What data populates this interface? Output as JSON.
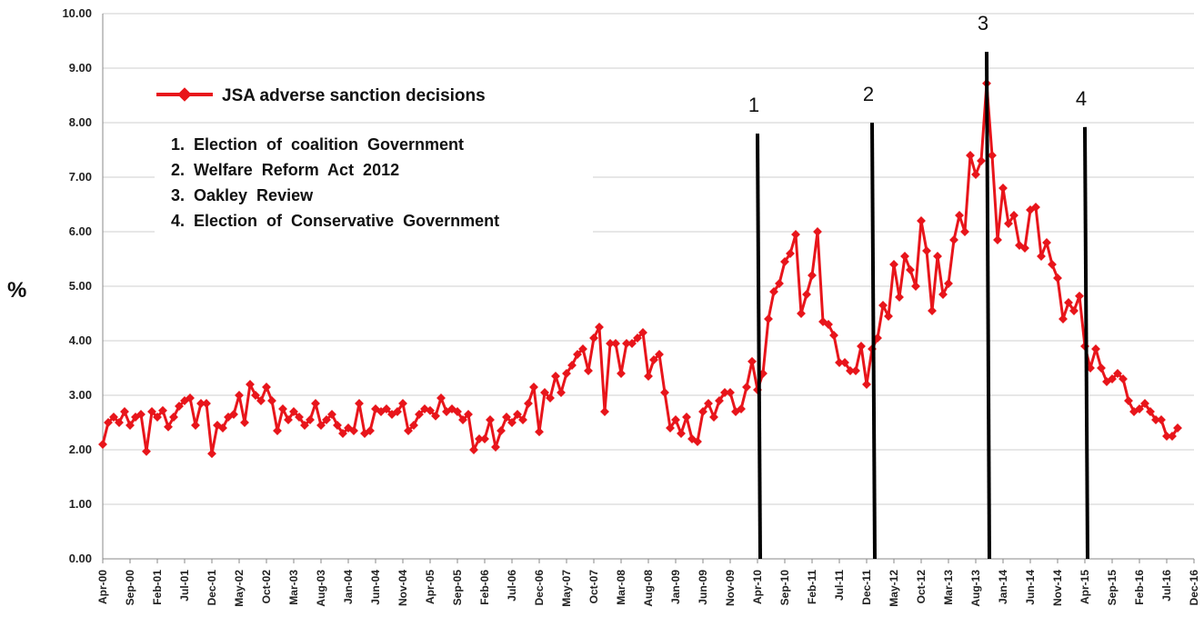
{
  "chart_data": {
    "type": "line",
    "title": "",
    "ylabel": "%",
    "xlabel": "",
    "ylim": [
      0,
      10
    ],
    "y_ticks": [
      "0.00",
      "1.00",
      "2.00",
      "3.00",
      "4.00",
      "5.00",
      "6.00",
      "7.00",
      "8.00",
      "9.00",
      "10.00"
    ],
    "x_ticks": [
      "Apr-00",
      "Sep-00",
      "Feb-01",
      "Jul-01",
      "Dec-01",
      "May-02",
      "Oct-02",
      "Mar-03",
      "Aug-03",
      "Jan-04",
      "Jun-04",
      "Nov-04",
      "Apr-05",
      "Sep-05",
      "Feb-06",
      "Jul-06",
      "Dec-06",
      "May-07",
      "Oct-07",
      "Mar-08",
      "Aug-08",
      "Jan-09",
      "Jun-09",
      "Nov-09",
      "Apr-10",
      "Sep-10",
      "Feb-11",
      "Jul-11",
      "Dec-11",
      "May-12",
      "Oct-12",
      "Mar-13",
      "Aug-13",
      "Jan-14",
      "Jun-14",
      "Nov-14",
      "Apr-15",
      "Sep-15",
      "Feb-16",
      "Jul-16",
      "Dec-16"
    ],
    "grid": "horizontal",
    "legend_position": "top-left",
    "series": [
      {
        "name": "JSA adverse sanction decisions",
        "color": "#e8151b",
        "start": "Apr-00",
        "frequency": "monthly",
        "values": [
          2.1,
          2.5,
          2.6,
          2.5,
          2.7,
          2.45,
          2.6,
          2.65,
          1.97,
          2.7,
          2.6,
          2.72,
          2.42,
          2.6,
          2.8,
          2.9,
          2.95,
          2.45,
          2.85,
          2.85,
          1.93,
          2.45,
          2.4,
          2.6,
          2.65,
          3.0,
          2.5,
          3.2,
          3.0,
          2.9,
          3.15,
          2.9,
          2.35,
          2.75,
          2.55,
          2.7,
          2.6,
          2.45,
          2.55,
          2.85,
          2.45,
          2.55,
          2.65,
          2.45,
          2.3,
          2.4,
          2.35,
          2.85,
          2.3,
          2.35,
          2.75,
          2.7,
          2.75,
          2.65,
          2.7,
          2.85,
          2.35,
          2.45,
          2.65,
          2.75,
          2.72,
          2.62,
          2.95,
          2.7,
          2.75,
          2.7,
          2.55,
          2.65,
          2.0,
          2.2,
          2.2,
          2.55,
          2.05,
          2.35,
          2.6,
          2.5,
          2.65,
          2.55,
          2.85,
          3.15,
          2.33,
          3.05,
          2.95,
          3.35,
          3.05,
          3.4,
          3.55,
          3.75,
          3.85,
          3.45,
          4.05,
          4.25,
          2.7,
          3.95,
          3.95,
          3.4,
          3.95,
          3.95,
          4.05,
          4.15,
          3.35,
          3.65,
          3.75,
          3.05,
          2.4,
          2.55,
          2.3,
          2.6,
          2.2,
          2.15,
          2.7,
          2.85,
          2.6,
          2.9,
          3.05,
          3.05,
          2.7,
          2.75,
          3.15,
          3.62,
          3.1,
          3.4,
          4.4,
          4.9,
          5.05,
          5.45,
          5.6,
          5.95,
          4.5,
          4.85,
          5.2,
          6.0,
          4.35,
          4.3,
          4.1,
          3.6,
          3.6,
          3.45,
          3.45,
          3.9,
          3.2,
          3.85,
          4.05,
          4.65,
          4.45,
          5.4,
          4.8,
          5.55,
          5.3,
          5.0,
          6.2,
          5.65,
          4.55,
          5.55,
          4.85,
          5.05,
          5.85,
          6.3,
          6.0,
          7.4,
          7.05,
          7.3,
          8.72,
          7.4,
          5.85,
          6.8,
          6.15,
          6.3,
          5.75,
          5.7,
          6.4,
          6.45,
          5.55,
          5.8,
          5.4,
          5.15,
          4.4,
          4.7,
          4.55,
          4.82,
          3.9,
          3.5,
          3.85,
          3.5,
          3.25,
          3.3,
          3.4,
          3.3,
          2.9,
          2.7,
          2.75,
          2.85,
          2.7,
          2.55,
          2.55,
          2.25,
          2.25,
          2.4
        ]
      }
    ],
    "event_markers": [
      {
        "label": "1",
        "at": "Apr-10",
        "top_value": 7.8
      },
      {
        "label": "2",
        "at": "Jan-12",
        "top_value": 8.0
      },
      {
        "label": "3",
        "at": "Oct-13",
        "top_value": 9.3
      },
      {
        "label": "4",
        "at": "Apr-15",
        "top_value": 7.92
      }
    ],
    "legend_label": "JSA adverse sanction decisions",
    "annotations": [
      "1.  Election  of  coalition  Government",
      "2.  Welfare  Reform  Act  2012",
      "3.  Oakley  Review",
      "4.  Election  of  Conservative  Government"
    ]
  }
}
